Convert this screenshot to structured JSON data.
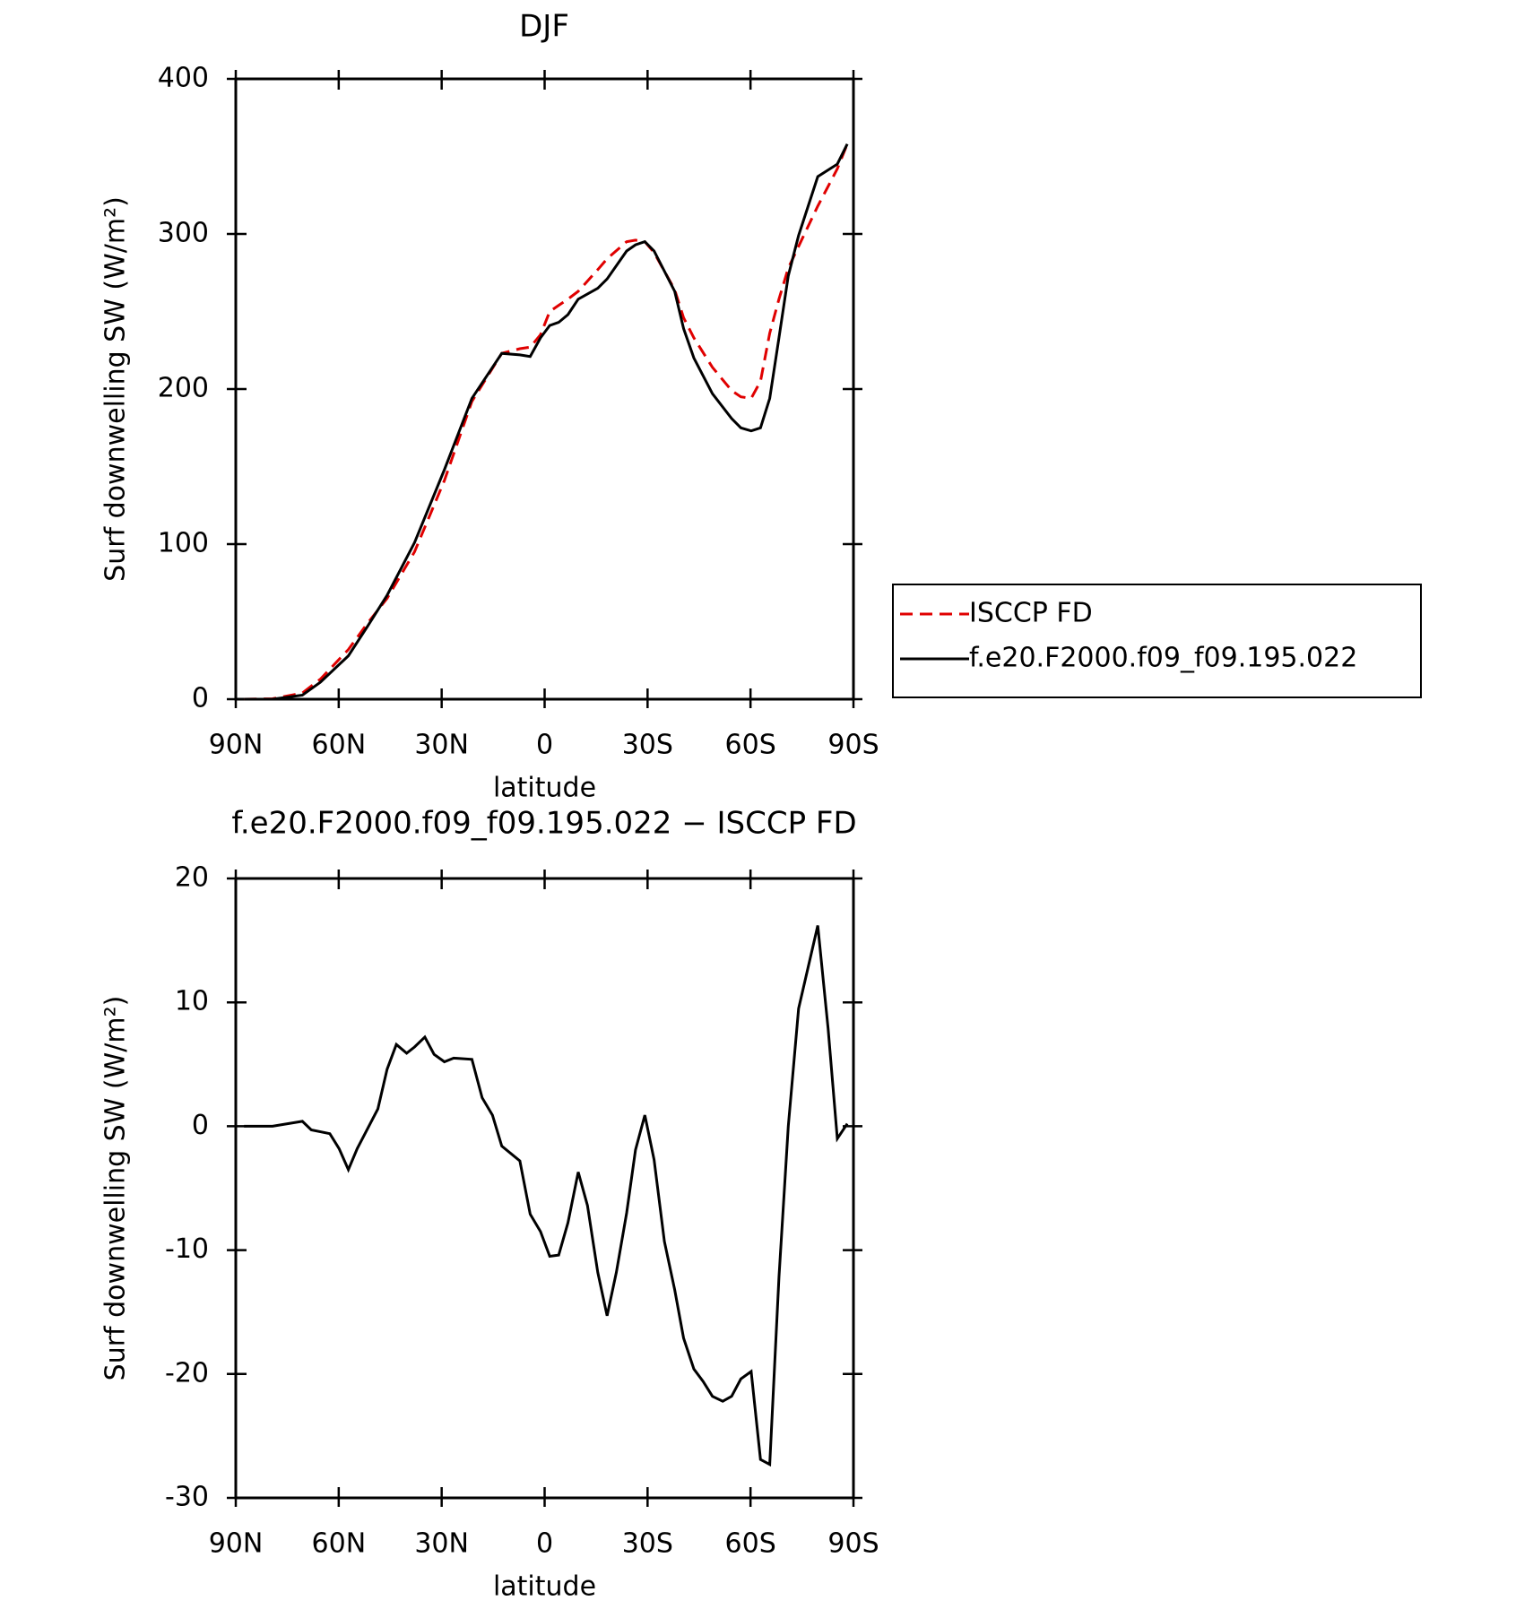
{
  "chart_data": [
    {
      "type": "line",
      "title": "DJF",
      "x": [
        87.6,
        79.3,
        70.6,
        65.3,
        57.2,
        51.6,
        45.9,
        37.9,
        29.2,
        21.2,
        12.5,
        7.2,
        4.2,
        1.2,
        -1.5,
        -4.1,
        -6.8,
        -9.8,
        -15.5,
        -18.2,
        -23.9,
        -26.5,
        -29.2,
        -31.9,
        -37.9,
        -40.5,
        -43.5,
        -48.9,
        -54.5,
        -57.2,
        -60.2,
        -62.9,
        -65.6,
        -68.3,
        -71.0,
        -74.0,
        -79.6,
        -85.3,
        -88.2
      ],
      "series": [
        {
          "name": "ISCCP FD",
          "color": "#e00000",
          "dashed": true,
          "values": [
            0,
            0.3,
            4,
            13,
            32,
            49,
            65,
            95,
            141,
            192,
            223,
            226,
            227,
            235,
            250,
            254,
            258,
            263,
            277,
            284,
            295,
            296,
            295,
            288,
            264,
            246,
            233,
            214,
            199,
            195,
            194,
            205,
            236,
            258,
            278,
            292,
            318,
            342,
            358
          ]
        },
        {
          "name": "f.e20.F2000.f09_f09.195.022",
          "color": "#000000",
          "dashed": false,
          "values": [
            0,
            0,
            2.6,
            11,
            28,
            47,
            67,
            101,
            148,
            194,
            223,
            222,
            221,
            233,
            241,
            243,
            248,
            258,
            265,
            271,
            289,
            293,
            295,
            289,
            263,
            239,
            220,
            197,
            181,
            175,
            173,
            175,
            194,
            233,
            273,
            299,
            337,
            345,
            358
          ]
        }
      ],
      "xlabel": "latitude",
      "ylabel": "Surf downwelling SW (W/m²)",
      "xlim": [
        90,
        -90
      ],
      "ylim": [
        0,
        400
      ],
      "xticks": [
        {
          "value": 90,
          "label": "90N"
        },
        {
          "value": 60,
          "label": "60N"
        },
        {
          "value": 30,
          "label": "30N"
        },
        0,
        {
          "value": -30,
          "label": "30S"
        },
        {
          "value": -60,
          "label": "60S"
        },
        {
          "value": -90,
          "label": "90S"
        }
      ],
      "yticks": [
        0,
        100,
        200,
        300,
        400
      ],
      "legend": "right"
    },
    {
      "type": "line",
      "title": "f.e20.F2000.f09_f09.195.022 − ISCCP FD",
      "x": [
        87.6,
        79.3,
        70.6,
        68.0,
        62.6,
        59.9,
        57.2,
        54.6,
        51.6,
        48.6,
        45.9,
        43.2,
        40.2,
        37.9,
        34.9,
        32.2,
        29.2,
        26.5,
        21.2,
        18.2,
        15.2,
        12.5,
        7.2,
        4.2,
        1.2,
        -1.5,
        -4.1,
        -6.8,
        -9.8,
        -12.5,
        -15.5,
        -18.2,
        -20.9,
        -23.9,
        -26.5,
        -29.2,
        -31.9,
        -34.9,
        -37.9,
        -40.5,
        -43.5,
        -46.2,
        -48.9,
        -51.9,
        -54.5,
        -57.2,
        -60.2,
        -62.9,
        -65.6,
        -68.3,
        -71.0,
        -74.0,
        -79.6,
        -82.6,
        -85.3,
        -88.2
      ],
      "values": [
        0,
        0,
        0.4,
        -0.3,
        -0.6,
        -1.8,
        -3.5,
        -1.8,
        -0.2,
        1.4,
        4.6,
        6.6,
        5.9,
        6.4,
        7.2,
        5.8,
        5.2,
        5.5,
        5.4,
        2.3,
        0.9,
        -1.6,
        -2.8,
        -7.1,
        -8.5,
        -10.5,
        -10.4,
        -7.8,
        -3.7,
        -6.4,
        -11.8,
        -15.3,
        -11.8,
        -7.0,
        -1.9,
        0.9,
        -2.7,
        -9.3,
        -13.2,
        -17.1,
        -19.6,
        -20.6,
        -21.8,
        -22.2,
        -21.8,
        -20.4,
        -19.8,
        -26.9,
        -27.3,
        -12.2,
        0.0,
        9.5,
        16.2,
        7.9,
        -1.0,
        0.2
      ],
      "color": "#000000",
      "xlabel": "latitude",
      "ylabel": "Surf downwelling SW (W/m²)",
      "xlim": [
        90,
        -90
      ],
      "ylim": [
        -30,
        20
      ],
      "xticks": [
        {
          "value": 90,
          "label": "90N"
        },
        {
          "value": 60,
          "label": "60N"
        },
        {
          "value": 30,
          "label": "30N"
        },
        0,
        {
          "value": -30,
          "label": "30S"
        },
        {
          "value": -60,
          "label": "60S"
        },
        {
          "value": -90,
          "label": "90S"
        }
      ],
      "yticks": [
        -30,
        -20,
        -10,
        0,
        10,
        20
      ]
    }
  ]
}
